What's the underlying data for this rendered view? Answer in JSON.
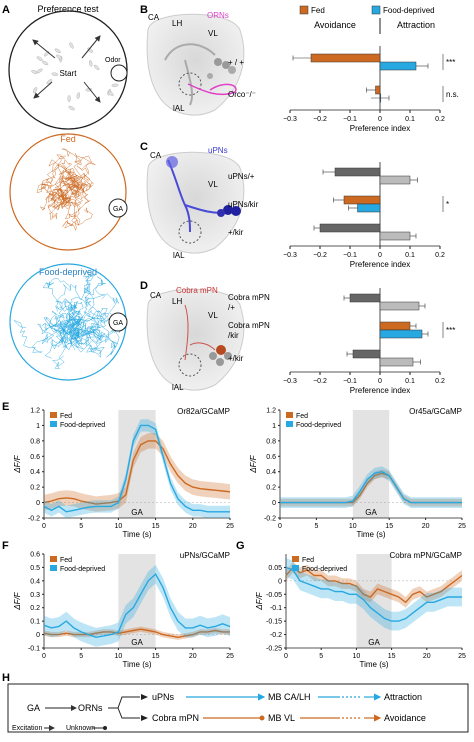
{
  "panels": {
    "A": {
      "letter": "A",
      "title": "Preference test",
      "start": "Start",
      "odor": "Odor",
      "fed": "Fed",
      "ga": "GA",
      "fd": "Food-deprived"
    },
    "B": {
      "letter": "B",
      "brain": {
        "ca": "CA",
        "lh": "LH",
        "vl": "VL",
        "ial": "lAL",
        "neuron": "ORNs"
      }
    },
    "C": {
      "letter": "C",
      "brain": {
        "ca": "CA",
        "lh": "",
        "vl": "VL",
        "ial": "lAL",
        "neuron": "uPNs"
      }
    },
    "D": {
      "letter": "D",
      "brain": {
        "ca": "CA",
        "lh": "LH",
        "vl": "VL",
        "ial": "lAL",
        "neuron": "Cobra mPN"
      }
    },
    "E": {
      "letter": "E"
    },
    "F": {
      "letter": "F"
    },
    "G": {
      "letter": "G"
    },
    "H": {
      "letter": "H",
      "nodes": {
        "ga": "GA",
        "orns": "ORNs",
        "upns": "uPNs",
        "cobra": "Cobra mPN",
        "mbca": "MB CA/LH",
        "mbvl": "MB VL",
        "attraction": "Attraction",
        "avoidance": "Avoidance"
      },
      "legend": {
        "excitation": "Excitation",
        "unknown": "Unknown"
      }
    }
  },
  "colors": {
    "fed": "#cc6a22",
    "fd": "#28a8e0",
    "dark_gray": "#666666",
    "light_gray": "#bbbbbb"
  },
  "chart_data": [
    {
      "id": "B",
      "type": "bar",
      "orientation": "horizontal",
      "legend": [
        "Fed",
        "Food-deprived"
      ],
      "headings": {
        "left": "Avoidance",
        "right": "Attraction"
      },
      "xlabel": "Preference index",
      "xlim": [
        -0.3,
        0.2
      ],
      "xticks": [
        "−0.3",
        "−0.2",
        "−0.1",
        "0",
        "0.1",
        "0.2"
      ],
      "groups": [
        {
          "label": [
            "+ / +"
          ],
          "sig": "***",
          "bars": [
            {
              "value": -0.23,
              "err": 0.06,
              "color": "#cc6a22"
            },
            {
              "value": 0.12,
              "err": 0.04,
              "color": "#28a8e0"
            }
          ]
        },
        {
          "label": [
            "Orco⁻/⁻"
          ],
          "sig": "n.s.",
          "bars": [
            {
              "value": -0.015,
              "err": 0.03,
              "color": "#cc6a22"
            },
            {
              "value": 0.0,
              "err": 0.03,
              "color": "#28a8e0"
            }
          ]
        }
      ]
    },
    {
      "id": "C",
      "type": "bar",
      "orientation": "horizontal",
      "xlabel": "Preference index",
      "xlim": [
        -0.3,
        0.2
      ],
      "xticks": [
        "−0.3",
        "−0.2",
        "−0.1",
        "0",
        "0.1",
        "0.2"
      ],
      "groups": [
        {
          "label": [
            "uPNs/+"
          ],
          "sig": "",
          "bars": [
            {
              "value": -0.15,
              "err": 0.04,
              "color": "#666666"
            },
            {
              "value": 0.1,
              "err": 0.025,
              "color": "#bbbbbb"
            }
          ]
        },
        {
          "label": [
            "uPNs/kir"
          ],
          "sig": "*",
          "bars": [
            {
              "value": -0.12,
              "err": 0.035,
              "color": "#cc6a22"
            },
            {
              "value": -0.075,
              "err": 0.03,
              "color": "#28a8e0"
            }
          ]
        },
        {
          "label": [
            "+/kir"
          ],
          "sig": "",
          "bars": [
            {
              "value": -0.2,
              "err": 0.02,
              "color": "#666666"
            },
            {
              "value": 0.1,
              "err": 0.02,
              "color": "#bbbbbb"
            }
          ]
        }
      ]
    },
    {
      "id": "D",
      "type": "bar",
      "orientation": "horizontal",
      "xlabel": "Preference index",
      "xlim": [
        -0.3,
        0.2
      ],
      "xticks": [
        "−0.3",
        "−0.2",
        "−0.1",
        "0",
        "0.1",
        "0.2"
      ],
      "groups": [
        {
          "label": [
            "Cobra mPN",
            "/+"
          ],
          "sig": "",
          "bars": [
            {
              "value": -0.1,
              "err": 0.02,
              "color": "#666666"
            },
            {
              "value": 0.13,
              "err": 0.02,
              "color": "#bbbbbb"
            }
          ]
        },
        {
          "label": [
            "Cobra mPN",
            "/kir"
          ],
          "sig": "***",
          "bars": [
            {
              "value": 0.1,
              "err": 0.02,
              "color": "#cc6a22"
            },
            {
              "value": 0.14,
              "err": 0.02,
              "color": "#28a8e0"
            }
          ]
        },
        {
          "label": [
            "+/kir"
          ],
          "sig": "",
          "bars": [
            {
              "value": -0.09,
              "err": 0.02,
              "color": "#666666"
            },
            {
              "value": 0.11,
              "err": 0.025,
              "color": "#bbbbbb"
            }
          ]
        }
      ]
    },
    {
      "id": "E1",
      "type": "line",
      "title": "Or82a/GCaMP",
      "xlabel": "Time (s)",
      "ylabel": "ΔF/F",
      "xlim": [
        0,
        25
      ],
      "ylim": [
        -0.2,
        1.2
      ],
      "yticks": [
        -0.2,
        0,
        0.2,
        0.4,
        0.6,
        0.8,
        1,
        1.2
      ],
      "xticks": [
        0,
        5,
        10,
        15,
        20,
        25
      ],
      "stim": {
        "start": 10,
        "end": 15,
        "label": "GA"
      },
      "series": [
        {
          "name": "Fed",
          "color": "#cc6a22",
          "band": 0.1,
          "x": [
            0,
            1,
            2,
            3,
            4,
            5,
            6,
            7,
            8,
            9,
            10,
            11,
            12,
            13,
            14,
            15,
            16,
            17,
            18,
            19,
            20,
            21,
            22,
            23,
            24,
            25
          ],
          "y": [
            0.0,
            0.02,
            0.05,
            0.06,
            0.05,
            0.02,
            0.0,
            -0.02,
            -0.01,
            0.0,
            0.02,
            0.1,
            0.55,
            0.75,
            0.8,
            0.8,
            0.7,
            0.5,
            0.35,
            0.25,
            0.2,
            0.18,
            0.17,
            0.16,
            0.15,
            0.14
          ]
        },
        {
          "name": "Food-deprived",
          "color": "#28a8e0",
          "band": 0.08,
          "x": [
            0,
            1,
            2,
            3,
            4,
            5,
            6,
            7,
            8,
            9,
            10,
            11,
            12,
            13,
            14,
            15,
            16,
            17,
            18,
            19,
            20,
            21,
            22,
            23,
            24,
            25
          ],
          "y": [
            -0.05,
            -0.1,
            -0.05,
            -0.12,
            -0.1,
            -0.08,
            -0.06,
            -0.05,
            -0.05,
            -0.05,
            0.0,
            0.3,
            0.8,
            1.0,
            1.0,
            0.95,
            0.6,
            0.25,
            0.05,
            -0.05,
            -0.1,
            -0.1,
            -0.12,
            -0.12,
            -0.12,
            -0.12
          ]
        }
      ]
    },
    {
      "id": "E2",
      "type": "line",
      "title": "Or45a/GCaMP",
      "xlabel": "Time (s)",
      "ylabel": "ΔF/F",
      "xlim": [
        0,
        25
      ],
      "ylim": [
        -0.2,
        1.2
      ],
      "yticks": [
        -0.2,
        0,
        0.2,
        0.4,
        0.6,
        0.8,
        1,
        1.2
      ],
      "xticks": [
        0,
        5,
        10,
        15,
        20,
        25
      ],
      "stim": {
        "start": 10,
        "end": 15,
        "label": "GA"
      },
      "series": [
        {
          "name": "Fed",
          "color": "#cc6a22",
          "band": 0.05,
          "x": [
            0,
            1,
            2,
            3,
            4,
            5,
            6,
            7,
            8,
            9,
            10,
            11,
            12,
            13,
            14,
            15,
            16,
            17,
            18,
            19,
            20,
            21,
            22,
            23,
            24,
            25
          ],
          "y": [
            0.0,
            0.0,
            0.0,
            0.0,
            0.0,
            0.0,
            0.0,
            0.0,
            0.0,
            0.0,
            0.0,
            0.1,
            0.25,
            0.35,
            0.38,
            0.35,
            0.2,
            0.05,
            0.0,
            0.0,
            0.0,
            0.0,
            0.0,
            0.0,
            0.0,
            0.0
          ]
        },
        {
          "name": "Food-deprived",
          "color": "#28a8e0",
          "band": 0.07,
          "x": [
            0,
            1,
            2,
            3,
            4,
            5,
            6,
            7,
            8,
            9,
            10,
            11,
            12,
            13,
            14,
            15,
            16,
            17,
            18,
            19,
            20,
            21,
            22,
            23,
            24,
            25
          ],
          "y": [
            0.0,
            0.0,
            0.0,
            0.0,
            0.0,
            0.0,
            0.0,
            0.0,
            0.0,
            0.0,
            0.02,
            0.15,
            0.3,
            0.38,
            0.4,
            0.35,
            0.2,
            0.05,
            0.0,
            0.0,
            0.0,
            0.0,
            0.0,
            0.0,
            0.0,
            0.0
          ]
        }
      ]
    },
    {
      "id": "F",
      "type": "line",
      "title": "uPNs/GCaMP",
      "xlabel": "Time (s)",
      "ylabel": "ΔF/F",
      "xlim": [
        0,
        25
      ],
      "ylim": [
        -0.1,
        0.6
      ],
      "yticks": [
        -0.1,
        0,
        0.1,
        0.2,
        0.3,
        0.4,
        0.5,
        0.6
      ],
      "xticks": [
        0,
        5,
        10,
        15,
        20,
        25
      ],
      "stim": {
        "start": 10,
        "end": 15,
        "label": "GA"
      },
      "series": [
        {
          "name": "Fed",
          "color": "#cc6a22",
          "band": 0.02,
          "x": [
            0,
            1,
            2,
            3,
            4,
            5,
            6,
            7,
            8,
            9,
            10,
            11,
            12,
            13,
            14,
            15,
            16,
            17,
            18,
            19,
            20,
            21,
            22,
            23,
            24,
            25
          ],
          "y": [
            0.01,
            0.0,
            0.0,
            0.01,
            0.0,
            0.0,
            0.0,
            0.01,
            0.02,
            0.02,
            0.01,
            0.02,
            0.03,
            0.04,
            0.03,
            0.02,
            0.0,
            -0.01,
            -0.02,
            -0.01,
            0.0,
            0.02,
            0.02,
            0.03,
            0.02,
            0.02
          ]
        },
        {
          "name": "Food-deprived",
          "color": "#28a8e0",
          "band": 0.07,
          "x": [
            0,
            1,
            2,
            3,
            4,
            5,
            6,
            7,
            8,
            9,
            10,
            11,
            12,
            13,
            14,
            15,
            16,
            17,
            18,
            19,
            20,
            21,
            22,
            23,
            24,
            25
          ],
          "y": [
            0.07,
            0.05,
            0.06,
            0.1,
            0.05,
            0.02,
            0.0,
            -0.02,
            -0.01,
            0.0,
            0.02,
            0.15,
            0.2,
            0.3,
            0.4,
            0.45,
            0.35,
            0.2,
            0.1,
            0.05,
            0.05,
            0.07,
            0.05,
            0.06,
            0.08,
            0.06
          ]
        }
      ]
    },
    {
      "id": "G",
      "type": "line",
      "title": "Cobra mPN/GCaMP",
      "xlabel": "Time (s)",
      "ylabel": "ΔF/F",
      "xlim": [
        0,
        25
      ],
      "ylim": [
        -0.25,
        0.1
      ],
      "yticks": [
        -0.25,
        -0.2,
        -0.15,
        -0.1,
        -0.05,
        0,
        0.05
      ],
      "xticks": [
        0,
        5,
        10,
        15,
        20,
        25
      ],
      "stim": {
        "start": 10,
        "end": 15,
        "label": "GA"
      },
      "series": [
        {
          "name": "Fed",
          "color": "#cc6a22",
          "band": 0.02,
          "x": [
            0,
            1,
            2,
            3,
            4,
            5,
            6,
            7,
            8,
            9,
            10,
            11,
            12,
            13,
            14,
            15,
            16,
            17,
            18,
            19,
            20,
            21,
            22,
            23,
            24,
            25
          ],
          "y": [
            0.02,
            0.05,
            0.03,
            0.04,
            0.02,
            0.02,
            0.0,
            0.0,
            -0.01,
            -0.01,
            -0.02,
            -0.05,
            -0.06,
            -0.03,
            -0.04,
            -0.05,
            -0.06,
            -0.08,
            -0.05,
            -0.04,
            -0.06,
            -0.05,
            -0.04,
            -0.02,
            0.0,
            0.02
          ]
        },
        {
          "name": "Food-deprived",
          "color": "#28a8e0",
          "band": 0.035,
          "x": [
            0,
            1,
            2,
            3,
            4,
            5,
            6,
            7,
            8,
            9,
            10,
            11,
            12,
            13,
            14,
            15,
            16,
            17,
            18,
            19,
            20,
            21,
            22,
            23,
            24,
            25
          ],
          "y": [
            0.05,
            0.04,
            0.0,
            -0.01,
            -0.02,
            -0.03,
            -0.03,
            -0.04,
            -0.04,
            -0.05,
            -0.05,
            -0.07,
            -0.1,
            -0.12,
            -0.14,
            -0.15,
            -0.15,
            -0.14,
            -0.12,
            -0.1,
            -0.08,
            -0.08,
            -0.07,
            -0.06,
            -0.06,
            -0.06
          ]
        }
      ]
    }
  ]
}
